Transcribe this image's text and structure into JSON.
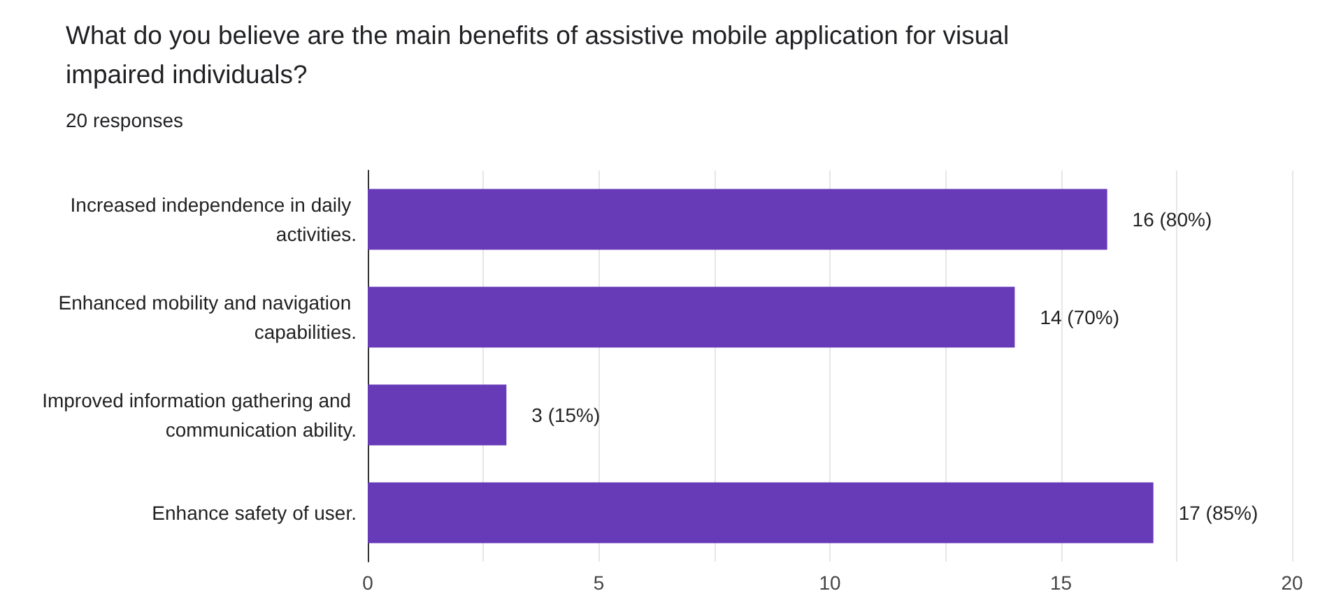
{
  "chart_data": {
    "type": "bar",
    "orientation": "horizontal",
    "title": "What do you believe are the main benefits of assistive mobile application for visual impaired individuals?",
    "subtitle": "20 responses",
    "categories": [
      "Increased independence in daily activities.",
      "Enhanced mobility and navigation capabilities.",
      "Improved information gathering and communication ability.",
      "Enhance safety of user."
    ],
    "values": [
      16,
      14,
      3,
      17
    ],
    "value_labels": [
      "16 (80%)",
      "14 (70%)",
      "3 (15%)",
      "17 (85%)"
    ],
    "color": "#673ab7",
    "xlim": [
      0,
      20
    ],
    "xticks": [
      0,
      {
        "value": 2.5,
        "label": null
      },
      5,
      {
        "value": 7.5,
        "label": null
      },
      10,
      {
        "value": 12.5,
        "label": null
      },
      15,
      {
        "value": 17.5,
        "label": null
      },
      20
    ],
    "grid": "x"
  }
}
